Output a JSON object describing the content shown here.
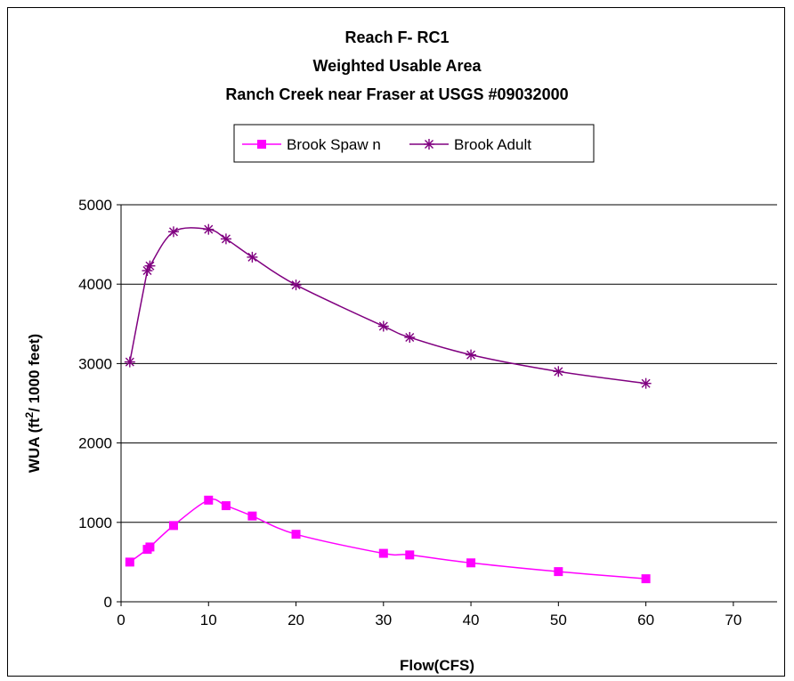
{
  "chart_data": {
    "type": "line",
    "title_lines": [
      "Reach F- RC1",
      "Weighted Usable Area",
      "Ranch Creek near Fraser at USGS #09032000"
    ],
    "xlabel": "Flow(CFS)",
    "ylabel_parts": {
      "before": "WUA (ft",
      "sup": "2",
      "after": "/ 1000 feet)"
    },
    "xlim": [
      0,
      75
    ],
    "ylim": [
      0,
      5000
    ],
    "x_ticks": [
      0,
      10,
      20,
      30,
      40,
      50,
      60,
      70
    ],
    "x_tick_labels": [
      "0",
      "10",
      "20",
      "30",
      "40",
      "50",
      "60",
      "70"
    ],
    "y_ticks": [
      0,
      1000,
      2000,
      3000,
      4000,
      5000
    ],
    "y_tick_labels": [
      "0",
      "1000",
      "2000",
      "3000",
      "4000",
      "5000"
    ],
    "grid": "horizontal",
    "legend_position": "top-center",
    "series": [
      {
        "name": "Brook Spaw n",
        "color": "#ff00ff",
        "marker": "square",
        "x": [
          1,
          3,
          3.3,
          6,
          10,
          12,
          15,
          20,
          30,
          33,
          40,
          50,
          60
        ],
        "y": [
          500,
          660,
          690,
          960,
          1280,
          1210,
          1080,
          850,
          610,
          590,
          490,
          380,
          290
        ]
      },
      {
        "name": "Brook Adult",
        "color": "#800080",
        "marker": "star",
        "x": [
          1,
          3,
          3.3,
          6,
          10,
          12,
          15,
          20,
          30,
          33,
          40,
          50,
          60
        ],
        "y": [
          3020,
          4170,
          4230,
          4660,
          4690,
          4570,
          4340,
          3990,
          3470,
          3330,
          3110,
          2900,
          2750
        ]
      }
    ]
  }
}
